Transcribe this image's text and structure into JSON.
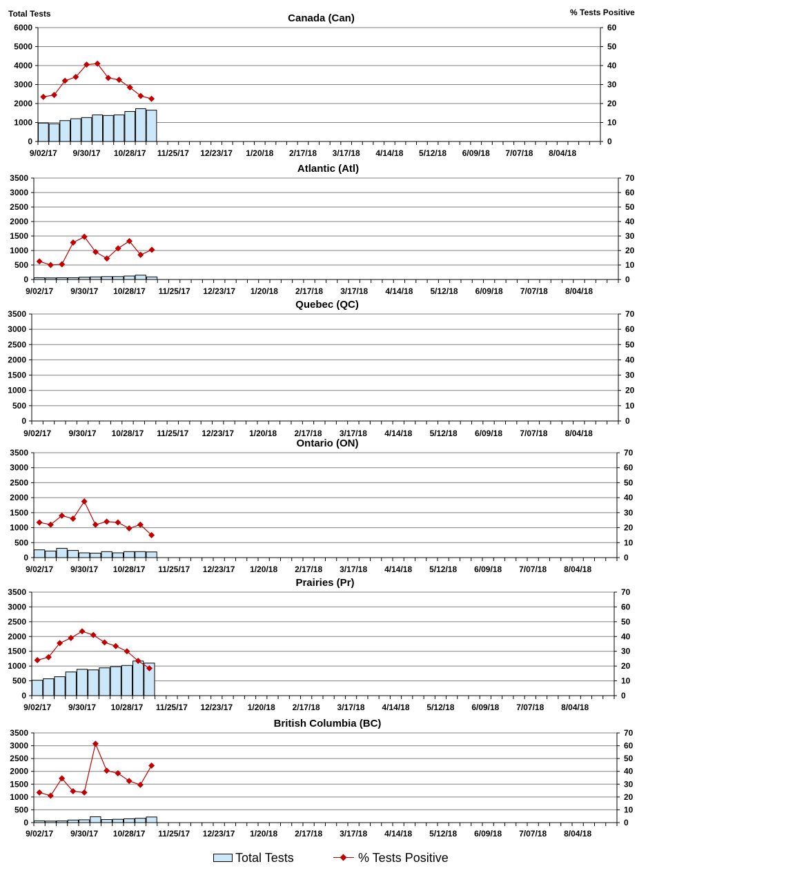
{
  "colors": {
    "bar_fill": "#cce8f8",
    "bar_stroke": "#000000",
    "line": "#c00000",
    "grid": "#808080"
  },
  "chart_data": [
    {
      "type": "bar+line",
      "title": "Canada (Can)",
      "ylabel_left": "Total Tests",
      "ylabel_right": "% Tests Positive",
      "x_tick_labels": [
        "9/02/17",
        "9/30/17",
        "10/28/17",
        "11/25/17",
        "12/23/17",
        "1/20/18",
        "2/17/18",
        "3/17/18",
        "4/14/18",
        "5/12/18",
        "6/09/18",
        "7/07/18",
        "8/04/18"
      ],
      "ylim_left": [
        0,
        6000
      ],
      "yticks_left": [
        0,
        1000,
        2000,
        3000,
        4000,
        5000,
        6000
      ],
      "ylim_right": [
        0,
        60
      ],
      "yticks_right": [
        0,
        10,
        20,
        30,
        40,
        50,
        60
      ],
      "total_tests": [
        970,
        930,
        1100,
        1200,
        1260,
        1400,
        1370,
        1400,
        1580,
        1730,
        1650
      ],
      "pct_positive": [
        23.5,
        24.5,
        32,
        34,
        40.5,
        41,
        33.5,
        32.5,
        28.5,
        24,
        22.5
      ]
    },
    {
      "type": "bar+line",
      "title": "Atlantic (Atl)",
      "x_tick_labels": [
        "9/02/17",
        "9/30/17",
        "10/28/17",
        "11/25/17",
        "12/23/17",
        "1/20/18",
        "2/17/18",
        "3/17/18",
        "4/14/18",
        "5/12/18",
        "6/09/18",
        "7/07/18",
        "8/04/18"
      ],
      "ylim_left": [
        0,
        3500
      ],
      "yticks_left": [
        0,
        500,
        1000,
        1500,
        2000,
        2500,
        3000,
        3500
      ],
      "ylim_right": [
        0,
        70
      ],
      "yticks_right": [
        0,
        10,
        20,
        30,
        40,
        50,
        60,
        70
      ],
      "total_tests": [
        60,
        55,
        60,
        60,
        80,
        90,
        100,
        100,
        120,
        150,
        90
      ],
      "pct_positive": [
        12.5,
        10,
        10.5,
        25.5,
        29.5,
        19,
        14.5,
        21.5,
        26.5,
        17,
        20.5
      ]
    },
    {
      "type": "bar+line",
      "title": "Quebec (QC)",
      "x_tick_labels": [
        "9/02/17",
        "9/30/17",
        "10/28/17",
        "11/25/17",
        "12/23/17",
        "1/20/18",
        "2/17/18",
        "3/17/18",
        "4/14/18",
        "5/12/18",
        "6/09/18",
        "7/07/18",
        "8/04/18"
      ],
      "ylim_left": [
        0,
        3500
      ],
      "yticks_left": [
        0,
        500,
        1000,
        1500,
        2000,
        2500,
        3000,
        3500
      ],
      "ylim_right": [
        0,
        70
      ],
      "yticks_right": [
        0,
        10,
        20,
        30,
        40,
        50,
        60,
        70
      ],
      "total_tests": [],
      "pct_positive": []
    },
    {
      "type": "bar+line",
      "title": "Ontario (ON)",
      "x_tick_labels": [
        "9/02/17",
        "9/30/17",
        "10/28/17",
        "11/25/17",
        "12/23/17",
        "1/20/18",
        "2/17/18",
        "3/17/18",
        "4/14/18",
        "5/12/18",
        "6/09/18",
        "7/07/18",
        "8/04/18"
      ],
      "ylim_left": [
        0,
        3500
      ],
      "yticks_left": [
        0,
        500,
        1000,
        1500,
        2000,
        2500,
        3000,
        3500
      ],
      "ylim_right": [
        0,
        70
      ],
      "yticks_right": [
        0,
        10,
        20,
        30,
        40,
        50,
        60,
        70
      ],
      "total_tests": [
        260,
        220,
        310,
        240,
        160,
        150,
        200,
        160,
        200,
        200,
        190
      ],
      "pct_positive": [
        23.5,
        22,
        28,
        26,
        37.5,
        22,
        24,
        23.5,
        19.5,
        22,
        15
      ]
    },
    {
      "type": "bar+line",
      "title": "Prairies (Pr)",
      "x_tick_labels": [
        "9/02/17",
        "9/30/17",
        "10/28/17",
        "11/25/17",
        "12/23/17",
        "1/20/18",
        "2/17/18",
        "3/17/18",
        "4/14/18",
        "5/12/18",
        "6/09/18",
        "7/07/18",
        "8/04/18"
      ],
      "ylim_left": [
        0,
        3500
      ],
      "yticks_left": [
        0,
        500,
        1000,
        1500,
        2000,
        2500,
        3000,
        3500
      ],
      "ylim_right": [
        0,
        70
      ],
      "yticks_right": [
        0,
        10,
        20,
        30,
        40,
        50,
        60,
        70
      ],
      "total_tests": [
        520,
        570,
        640,
        800,
        890,
        870,
        940,
        980,
        1020,
        1170,
        1100
      ],
      "pct_positive": [
        24,
        26,
        35.5,
        39,
        43.5,
        41,
        36,
        33.5,
        30,
        23.5,
        18.5
      ]
    },
    {
      "type": "bar+line",
      "title": "British Columbia (BC)",
      "x_tick_labels": [
        "9/02/17",
        "9/30/17",
        "10/28/17",
        "11/25/17",
        "12/23/17",
        "1/20/18",
        "2/17/18",
        "3/17/18",
        "4/14/18",
        "5/12/18",
        "6/09/18",
        "7/07/18",
        "8/04/18"
      ],
      "ylim_left": [
        0,
        3500
      ],
      "yticks_left": [
        0,
        500,
        1000,
        1500,
        2000,
        2500,
        3000,
        3500
      ],
      "ylim_right": [
        0,
        70
      ],
      "yticks_right": [
        0,
        10,
        20,
        30,
        40,
        50,
        60,
        70
      ],
      "total_tests": [
        70,
        60,
        65,
        100,
        110,
        230,
        120,
        130,
        150,
        170,
        220
      ],
      "pct_positive": [
        23.5,
        21,
        34.5,
        24.5,
        23.5,
        61.5,
        40.5,
        38.5,
        32.5,
        29.5,
        44.5
      ]
    }
  ],
  "legend": {
    "bar_label": "Total Tests",
    "line_label": "% Tests Positive"
  }
}
